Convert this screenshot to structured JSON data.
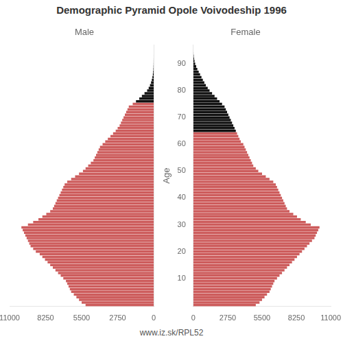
{
  "chart_data": {
    "type": "pyramid",
    "title": "Demographic Pyramid Opole Voivodeship 1996",
    "subtitle": "www.iz.sk/RPL52",
    "ylabel": "Age",
    "orientation": "horizontal",
    "grid": false,
    "categories": [
      0,
      1,
      2,
      3,
      4,
      5,
      6,
      7,
      8,
      9,
      10,
      11,
      12,
      13,
      14,
      15,
      16,
      17,
      18,
      19,
      20,
      21,
      22,
      23,
      24,
      25,
      26,
      27,
      28,
      29,
      30,
      31,
      32,
      33,
      34,
      35,
      36,
      37,
      38,
      39,
      40,
      41,
      42,
      43,
      44,
      45,
      46,
      47,
      48,
      49,
      50,
      51,
      52,
      53,
      54,
      55,
      56,
      57,
      58,
      59,
      60,
      61,
      62,
      63,
      64,
      65,
      66,
      67,
      68,
      69,
      70,
      71,
      72,
      73,
      74,
      75,
      76,
      77,
      78,
      79,
      80,
      81,
      82,
      83,
      84,
      85,
      86,
      87,
      88,
      89,
      90,
      91,
      92,
      93,
      94,
      95
    ],
    "xlim": [
      0,
      11000
    ],
    "xticks": [
      0,
      2750,
      5500,
      8250,
      11000
    ],
    "ylim": [
      -0.5,
      97
    ],
    "yticks": [
      10,
      20,
      30,
      40,
      50,
      60,
      70,
      80,
      90
    ],
    "series": [
      {
        "name": "Male",
        "values": [
          5200,
          5500,
          5700,
          5900,
          6100,
          6300,
          6400,
          6500,
          6600,
          6700,
          6900,
          7100,
          7300,
          7500,
          7700,
          7900,
          8100,
          8300,
          8500,
          8700,
          9000,
          9200,
          9400,
          9500,
          9600,
          9700,
          9800,
          9900,
          10000,
          10100,
          9600,
          9200,
          8800,
          8500,
          8200,
          7900,
          7700,
          7600,
          7500,
          7400,
          7300,
          7200,
          7100,
          7000,
          6900,
          6800,
          6600,
          6300,
          6000,
          5700,
          5400,
          5200,
          5000,
          4800,
          4600,
          4500,
          4400,
          4300,
          4200,
          4100,
          3900,
          3700,
          3500,
          3300,
          3100,
          2900,
          2750,
          2600,
          2500,
          2400,
          2300,
          2200,
          2100,
          2000,
          1900,
          1600,
          1350,
          1100,
          900,
          700,
          500,
          380,
          280,
          200,
          140,
          95,
          60,
          38,
          22,
          13,
          7,
          4,
          2,
          1,
          0,
          0
        ],
        "colors": [
          "#CD5C5C",
          "#CD5C5C",
          "#CD5C5C",
          "#CD5C5C",
          "#CD5C5C",
          "#CD5C5C",
          "#CD5C5C",
          "#CD5C5C",
          "#CD5C5C",
          "#CD5C5C",
          "#CD5C5C",
          "#CD5C5C",
          "#CD5C5C",
          "#CD5C5C",
          "#CD5C5C",
          "#CD5C5C",
          "#CD5C5C",
          "#CD5C5C",
          "#CD5C5C",
          "#CD5C5C",
          "#CD5C5C",
          "#CD5C5C",
          "#CD5C5C",
          "#CD5C5C",
          "#CD5C5C",
          "#CD5C5C",
          "#CD5C5C",
          "#CD5C5C",
          "#CD5C5C",
          "#CD5C5C",
          "#CD5C5C",
          "#CD5C5C",
          "#CD5C5C",
          "#CD5C5C",
          "#CD5C5C",
          "#CD5C5C",
          "#CD5C5C",
          "#CD5C5C",
          "#CD5C5C",
          "#CD5C5C",
          "#CD5C5C",
          "#CD5C5C",
          "#CD5C5C",
          "#CD5C5C",
          "#CD5C5C",
          "#CD5C5C",
          "#CD5C5C",
          "#CD5C5C",
          "#CD5C5C",
          "#CD5C5C",
          "#CD5C5C",
          "#CD5C5C",
          "#CD5C5C",
          "#CD5C5C",
          "#CD5C5C",
          "#CD5C5C",
          "#CD5C5C",
          "#CD5C5C",
          "#CD5C5C",
          "#CD5C5C",
          "#CD5C5C",
          "#CD5C5C",
          "#CD5C5C",
          "#CD5C5C",
          "#CD5C5C",
          "#CD5C5C",
          "#CD5C5C",
          "#CD5C5C",
          "#CD5C5C",
          "#CD5C5C",
          "#CD5C5C",
          "#CD5C5C",
          "#CD5C5C",
          "#CD5C5C",
          "#CD5C5C",
          "#CD5C5C",
          "#111111",
          "#111111",
          "#111111",
          "#111111",
          "#111111",
          "#111111",
          "#111111",
          "#111111",
          "#111111",
          "#111111",
          "#111111",
          "#111111",
          "#111111",
          "#111111",
          "#111111",
          "#111111",
          "#111111",
          "#111111",
          "#111111",
          "#111111"
        ]
      },
      {
        "name": "Female",
        "values": [
          5000,
          5300,
          5500,
          5700,
          5900,
          6100,
          6200,
          6300,
          6400,
          6500,
          6700,
          6900,
          7100,
          7300,
          7500,
          7700,
          7900,
          8100,
          8300,
          8500,
          8700,
          8900,
          9100,
          9300,
          9500,
          9700,
          9800,
          9900,
          10000,
          10100,
          9400,
          9000,
          8600,
          8300,
          8000,
          7700,
          7500,
          7400,
          7300,
          7200,
          7100,
          7000,
          6900,
          6800,
          6700,
          6600,
          6400,
          6100,
          5800,
          5500,
          5200,
          5000,
          4800,
          4700,
          4600,
          4500,
          4400,
          4300,
          4200,
          4100,
          4000,
          3800,
          3700,
          3600,
          3500,
          3400,
          3300,
          3200,
          3100,
          3000,
          2900,
          2800,
          2700,
          2600,
          2500,
          2300,
          2100,
          1900,
          1700,
          1500,
          1300,
          1150,
          1000,
          880,
          760,
          650,
          540,
          430,
          320,
          230,
          150,
          95,
          55,
          30,
          12,
          4
        ],
        "colors": [
          "#CD5C5C",
          "#CD5C5C",
          "#CD5C5C",
          "#CD5C5C",
          "#CD5C5C",
          "#CD5C5C",
          "#CD5C5C",
          "#CD5C5C",
          "#CD5C5C",
          "#CD5C5C",
          "#CD5C5C",
          "#CD5C5C",
          "#CD5C5C",
          "#CD5C5C",
          "#CD5C5C",
          "#CD5C5C",
          "#CD5C5C",
          "#CD5C5C",
          "#CD5C5C",
          "#CD5C5C",
          "#CD5C5C",
          "#CD5C5C",
          "#CD5C5C",
          "#CD5C5C",
          "#CD5C5C",
          "#CD5C5C",
          "#CD5C5C",
          "#CD5C5C",
          "#CD5C5C",
          "#CD5C5C",
          "#CD5C5C",
          "#CD5C5C",
          "#CD5C5C",
          "#CD5C5C",
          "#CD5C5C",
          "#CD5C5C",
          "#CD5C5C",
          "#CD5C5C",
          "#CD5C5C",
          "#CD5C5C",
          "#CD5C5C",
          "#CD5C5C",
          "#CD5C5C",
          "#CD5C5C",
          "#CD5C5C",
          "#CD5C5C",
          "#CD5C5C",
          "#CD5C5C",
          "#CD5C5C",
          "#CD5C5C",
          "#CD5C5C",
          "#CD5C5C",
          "#CD5C5C",
          "#CD5C5C",
          "#CD5C5C",
          "#CD5C5C",
          "#CD5C5C",
          "#CD5C5C",
          "#CD5C5C",
          "#CD5C5C",
          "#CD5C5C",
          "#CD5C5C",
          "#CD5C5C",
          "#CD5C5C",
          "#CD5C5C",
          "#111111",
          "#111111",
          "#111111",
          "#111111",
          "#111111",
          "#111111",
          "#111111",
          "#111111",
          "#111111",
          "#111111",
          "#111111",
          "#111111",
          "#111111",
          "#111111",
          "#111111",
          "#111111",
          "#111111",
          "#111111",
          "#111111",
          "#111111",
          "#111111",
          "#111111",
          "#111111",
          "#111111",
          "#111111",
          "#111111",
          "#111111",
          "#111111",
          "#111111",
          "#111111",
          "#111111"
        ]
      }
    ]
  }
}
